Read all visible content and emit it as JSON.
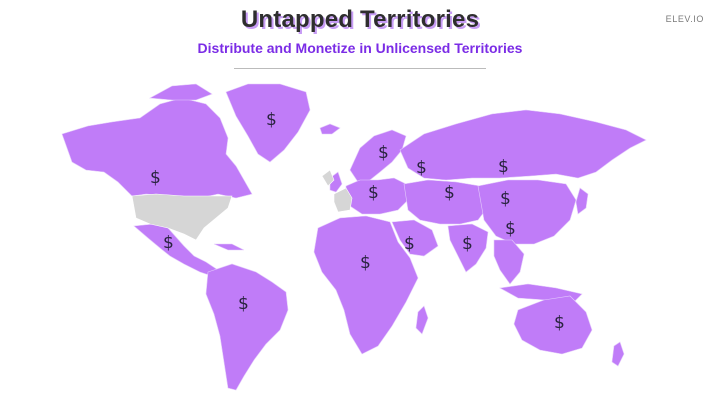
{
  "slide": {
    "title": "Untapped Territories",
    "subtitle": "Distribute and Monetize in Unlicensed Territories",
    "logo": "ELEV.IO"
  },
  "map": {
    "licensed_color": "#d6d6d6",
    "unlicensed_color": "#c07cf8",
    "marker_symbol": "$",
    "markers": [
      {
        "region": "greenland"
      },
      {
        "region": "canada"
      },
      {
        "region": "mexico-central-america"
      },
      {
        "region": "south-america"
      },
      {
        "region": "scandinavia"
      },
      {
        "region": "europe"
      },
      {
        "region": "russia-west"
      },
      {
        "region": "russia-east"
      },
      {
        "region": "central-asia"
      },
      {
        "region": "china"
      },
      {
        "region": "middle-east"
      },
      {
        "region": "south-asia"
      },
      {
        "region": "southeast-asia"
      },
      {
        "region": "africa"
      },
      {
        "region": "australia"
      }
    ]
  }
}
